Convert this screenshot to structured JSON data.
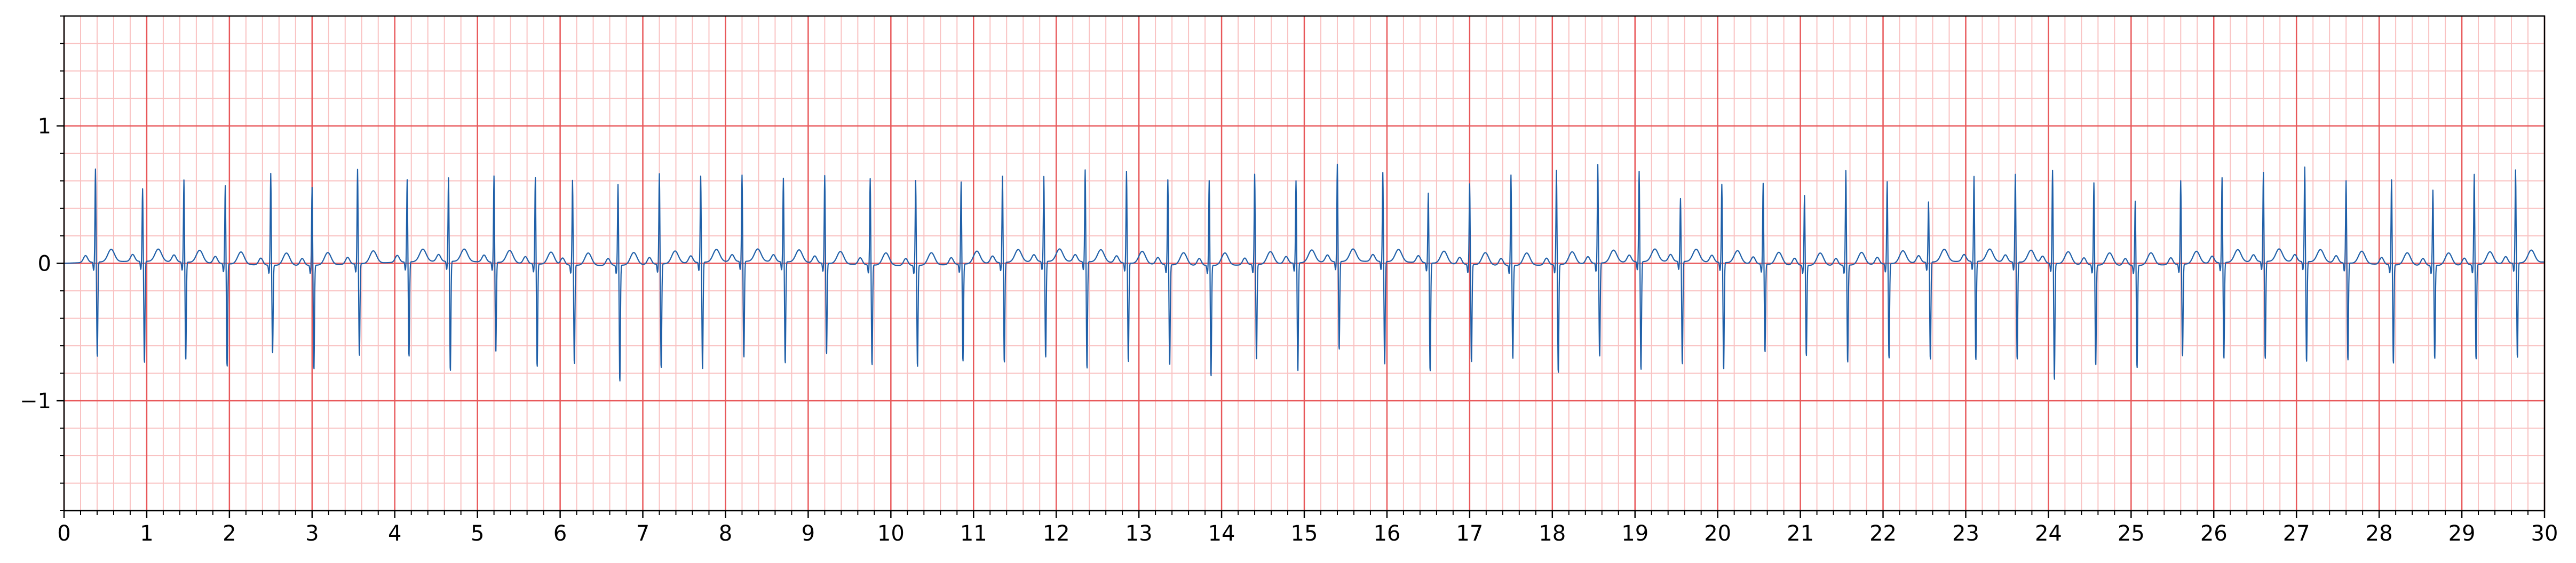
{
  "chart_data": {
    "type": "line",
    "title": "",
    "xlabel": "",
    "ylabel": "",
    "xlim": [
      0,
      30
    ],
    "ylim": [
      -1.8,
      1.8
    ],
    "grid": true,
    "x_ticks": [
      0,
      1,
      2,
      3,
      4,
      5,
      6,
      7,
      8,
      9,
      10,
      11,
      12,
      13,
      14,
      15,
      16,
      17,
      18,
      19,
      20,
      21,
      22,
      23,
      24,
      25,
      26,
      27,
      28,
      29,
      30
    ],
    "x_tick_labels": [
      "0",
      "1",
      "2",
      "3",
      "4",
      "5",
      "6",
      "7",
      "8",
      "9",
      "10",
      "11",
      "12",
      "13",
      "14",
      "15",
      "16",
      "17",
      "18",
      "19",
      "20",
      "21",
      "22",
      "23",
      "24",
      "25",
      "26",
      "27",
      "28",
      "29",
      "30"
    ],
    "y_ticks": [
      -1,
      0,
      1
    ],
    "y_tick_labels": [
      "−1",
      "0",
      "1"
    ],
    "colors": {
      "line": "#1f5fa8",
      "major_grid": "#e8585a",
      "minor_grid": "#f9c2c2",
      "axes": "#000000"
    },
    "series": [
      {
        "beat_times": [
          0.38,
          0.95,
          1.45,
          1.95,
          2.5,
          3.0,
          3.55,
          4.15,
          4.65,
          5.2,
          5.7,
          6.15,
          6.7,
          7.2,
          7.7,
          8.2,
          8.7,
          9.2,
          9.75,
          10.3,
          10.85,
          11.35,
          11.85,
          12.35,
          12.85,
          13.35,
          13.85,
          14.4,
          14.9,
          15.4,
          15.95,
          16.5,
          17.0,
          17.5,
          18.05,
          18.55,
          19.05,
          19.55,
          20.05,
          20.55,
          21.05,
          21.55,
          22.05,
          22.55,
          23.1,
          23.6,
          24.05,
          24.55,
          25.05,
          25.6,
          26.1,
          26.6,
          27.1,
          27.6,
          28.15,
          28.65,
          29.15,
          29.65
        ],
        "r_peaks": [
          0.68,
          0.53,
          0.6,
          0.57,
          0.67,
          0.57,
          0.69,
          0.6,
          0.61,
          0.63,
          0.63,
          0.62,
          0.59,
          0.66,
          0.63,
          0.63,
          0.61,
          0.64,
          0.63,
          0.62,
          0.6,
          0.63,
          0.62,
          0.67,
          0.67,
          0.62,
          0.62,
          0.66,
          0.6,
          0.71,
          0.65,
          0.51,
          0.59,
          0.66,
          0.69,
          0.72,
          0.66,
          0.46,
          0.57,
          0.59,
          0.51,
          0.69,
          0.6,
          0.44,
          0.62,
          0.64,
          0.68,
          0.6,
          0.47,
          0.61,
          0.62,
          0.65,
          0.69,
          0.6,
          0.62,
          0.55,
          0.66,
          0.68
        ],
        "s_troughs": [
          -0.7,
          -0.75,
          -0.72,
          -0.76,
          -0.65,
          -0.77,
          -0.68,
          -0.7,
          -0.81,
          -0.66,
          -0.76,
          -0.73,
          -0.86,
          -0.77,
          -0.79,
          -0.71,
          -0.75,
          -0.67,
          -0.74,
          -0.75,
          -0.72,
          -0.74,
          -0.71,
          -0.79,
          -0.73,
          -0.74,
          -0.82,
          -0.7,
          -0.8,
          -0.65,
          -0.76,
          -0.8,
          -0.72,
          -0.69,
          -0.8,
          -0.69,
          -0.8,
          -0.76,
          -0.79,
          -0.65,
          -0.67,
          -0.72,
          -0.7,
          -0.72,
          -0.73,
          -0.72,
          -0.86,
          -0.74,
          -0.76,
          -0.68,
          -0.71,
          -0.72,
          -0.74,
          -0.72,
          -0.73,
          -0.69,
          -0.7,
          -0.7
        ]
      }
    ]
  }
}
